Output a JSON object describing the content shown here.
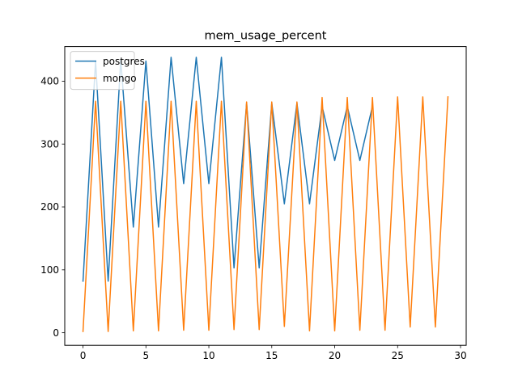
{
  "chart_data": {
    "type": "line",
    "title": "mem_usage_percent",
    "xlabel": "",
    "ylabel": "",
    "xlim": [
      -1.45,
      30.45
    ],
    "ylim": [
      -20,
      455
    ],
    "xticks": [
      0,
      5,
      10,
      15,
      20,
      25,
      30
    ],
    "yticks": [
      0,
      100,
      200,
      300,
      400
    ],
    "grid": false,
    "legend": "top-left",
    "series": [
      {
        "name": "postgres",
        "color": "#1f77b4",
        "x": [
          0,
          1,
          2,
          3,
          4,
          5,
          6,
          7,
          8,
          9,
          10,
          11,
          12,
          13,
          14,
          15,
          16,
          17,
          18,
          19,
          20,
          21,
          22,
          23
        ],
        "values": [
          82,
          432,
          82,
          434,
          168,
          432,
          168,
          438,
          237,
          438,
          237,
          438,
          103,
          365,
          103,
          365,
          205,
          365,
          205,
          360,
          274,
          360,
          274,
          360
        ]
      },
      {
        "name": "mongo",
        "color": "#ff7f0e",
        "x": [
          0,
          1,
          2,
          3,
          4,
          5,
          6,
          7,
          8,
          9,
          10,
          11,
          12,
          13,
          14,
          15,
          16,
          17,
          18,
          19,
          20,
          21,
          22,
          23,
          24,
          25,
          26,
          27,
          28,
          29
        ],
        "values": [
          2,
          368,
          2,
          368,
          3,
          368,
          3,
          368,
          4,
          368,
          4,
          368,
          5,
          367,
          5,
          367,
          10,
          367,
          3,
          374,
          3,
          374,
          4,
          374,
          4,
          375,
          9,
          375,
          9,
          375
        ]
      }
    ]
  }
}
